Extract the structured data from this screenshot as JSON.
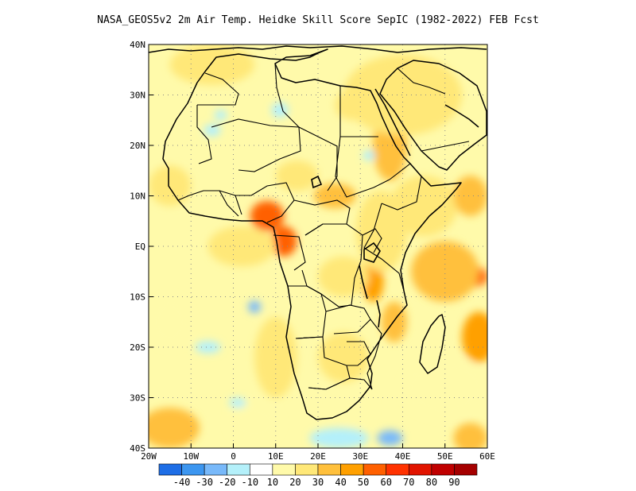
{
  "title": "NASA_GEOS5v2  2m Air Temp. Heidke Skill Score SepIC (1982-2022) FEB Fcst",
  "map": {
    "lon_range": [
      -20,
      60
    ],
    "lat_range": [
      -40,
      40
    ],
    "lon_ticks": [
      {
        "value": -20,
        "label": "20W"
      },
      {
        "value": -10,
        "label": "10W"
      },
      {
        "value": 0,
        "label": "0"
      },
      {
        "value": 10,
        "label": "10E"
      },
      {
        "value": 20,
        "label": "20E"
      },
      {
        "value": 30,
        "label": "30E"
      },
      {
        "value": 40,
        "label": "40E"
      },
      {
        "value": 50,
        "label": "50E"
      },
      {
        "value": 60,
        "label": "60E"
      }
    ],
    "lat_ticks": [
      {
        "value": 40,
        "label": "40N"
      },
      {
        "value": 30,
        "label": "30N"
      },
      {
        "value": 20,
        "label": "20N"
      },
      {
        "value": 10,
        "label": "10N"
      },
      {
        "value": 0,
        "label": "EQ"
      },
      {
        "value": -10,
        "label": "10S"
      },
      {
        "value": -20,
        "label": "20S"
      },
      {
        "value": -30,
        "label": "30S"
      },
      {
        "value": -40,
        "label": "40S"
      }
    ],
    "grid": true
  },
  "colorbar": {
    "colors": [
      "#1e6ee6",
      "#3c96f0",
      "#78b9fa",
      "#b4f0fa",
      "#ffffff",
      "#fffaaa",
      "#ffe878",
      "#ffc03c",
      "#ffa000",
      "#ff6000",
      "#ff3200",
      "#e11400",
      "#c00000",
      "#a50000"
    ],
    "labels": [
      "-40",
      "-30",
      "-20",
      "-10",
      "10",
      "20",
      "30",
      "40",
      "50",
      "60",
      "70",
      "80",
      "90"
    ]
  },
  "skill_patches": [
    {
      "lon": 8,
      "lat": 6,
      "rx": 4,
      "ry": 3,
      "level": 9
    },
    {
      "lon": 12,
      "lat": 1,
      "rx": 3,
      "ry": 3,
      "level": 9
    },
    {
      "lon": 33,
      "lat": -7,
      "rx": 2.5,
      "ry": 4,
      "level": 8
    },
    {
      "lon": 57,
      "lat": -6,
      "rx": 3,
      "ry": 2,
      "level": 9
    },
    {
      "lon": 50,
      "lat": -5,
      "rx": 8,
      "ry": 6,
      "level": 7
    },
    {
      "lon": 58,
      "lat": -18,
      "rx": 4,
      "ry": 5,
      "level": 8
    },
    {
      "lon": 24,
      "lat": 10,
      "rx": 5,
      "ry": 2.5,
      "level": 7
    },
    {
      "lon": 37,
      "lat": 20,
      "rx": 4,
      "ry": 7,
      "level": 7
    },
    {
      "lon": 45,
      "lat": 8,
      "rx": 8,
      "ry": 6,
      "level": 6
    },
    {
      "lon": 56,
      "lat": 10,
      "rx": 4,
      "ry": 4,
      "level": 7
    },
    {
      "lon": 35,
      "lat": 3,
      "rx": 6,
      "ry": 8,
      "level": 6
    },
    {
      "lon": 2,
      "lat": 0,
      "rx": 8,
      "ry": 4,
      "level": 6
    },
    {
      "lon": -15,
      "lat": 12,
      "rx": 5,
      "ry": 4,
      "level": 6
    },
    {
      "lon": 10,
      "lat": -22,
      "rx": 5,
      "ry": 8,
      "level": 6
    },
    {
      "lon": 26,
      "lat": -22,
      "rx": 6,
      "ry": 5,
      "level": 6
    },
    {
      "lon": 26,
      "lat": -6,
      "rx": 6,
      "ry": 4,
      "level": 6
    },
    {
      "lon": 38,
      "lat": -15,
      "rx": 3,
      "ry": 4,
      "level": 7
    },
    {
      "lon": 56,
      "lat": -38,
      "rx": 4,
      "ry": 3,
      "level": 7
    },
    {
      "lon": -15,
      "lat": -36,
      "rx": 7,
      "ry": 4,
      "level": 7
    },
    {
      "lon": 40,
      "lat": 30,
      "rx": 14,
      "ry": 8,
      "level": 6
    },
    {
      "lon": -5,
      "lat": 36,
      "rx": 10,
      "ry": 4,
      "level": 6
    },
    {
      "lon": 28,
      "lat": 28,
      "rx": 4,
      "ry": 3,
      "level": 6
    },
    {
      "lon": 15,
      "lat": 14,
      "rx": 5,
      "ry": 3,
      "level": 6
    },
    {
      "lon": 50,
      "lat": -28,
      "rx": 10,
      "ry": 6,
      "level": 5
    },
    {
      "lon": -15,
      "lat": -15,
      "rx": 5,
      "ry": 5,
      "level": 5
    },
    {
      "lon": 5,
      "lat": -35,
      "rx": 6,
      "ry": 4,
      "level": 5
    },
    {
      "lon": 28,
      "lat": -32,
      "rx": 5,
      "ry": 3,
      "level": 5
    },
    {
      "lon": 25,
      "lat": -38,
      "rx": 7,
      "ry": 2,
      "level": 3
    },
    {
      "lon": 37,
      "lat": -38,
      "rx": 3,
      "ry": 1.5,
      "level": 2
    },
    {
      "lon": 5,
      "lat": -12,
      "rx": 1.5,
      "ry": 1.2,
      "level": 2
    },
    {
      "lon": -6,
      "lat": -20,
      "rx": 3,
      "ry": 1.2,
      "level": 3
    },
    {
      "lon": 1,
      "lat": -31,
      "rx": 2,
      "ry": 1,
      "level": 3
    },
    {
      "lon": 11,
      "lat": 27,
      "rx": 2,
      "ry": 1.5,
      "level": 3
    },
    {
      "lon": -5,
      "lat": 23,
      "rx": 2,
      "ry": 1.2,
      "level": 3
    },
    {
      "lon": -3,
      "lat": 26,
      "rx": 1.5,
      "ry": 1,
      "level": 3
    },
    {
      "lon": 32,
      "lat": 18,
      "rx": 1.5,
      "ry": 1,
      "level": 3
    }
  ]
}
